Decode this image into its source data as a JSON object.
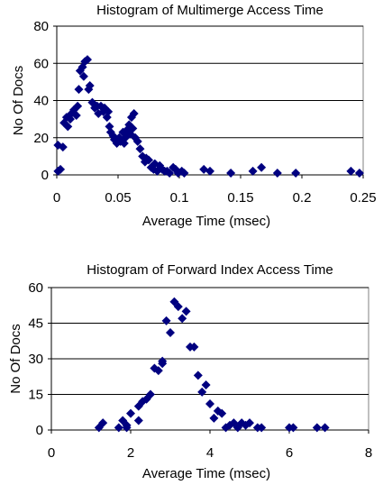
{
  "chart_data": [
    {
      "type": "scatter",
      "title": "Histogram of Multimerge Access Time",
      "xlabel": "Average Time (msec)",
      "ylabel": "No Of Docs",
      "xlim": [
        0,
        0.25
      ],
      "ylim": [
        0,
        80
      ],
      "x_ticks": [
        "0",
        "0.05",
        "0.1",
        "0.15",
        "0.2",
        "0.25"
      ],
      "y_ticks": [
        "0",
        "20",
        "40",
        "60",
        "80"
      ],
      "grid": true,
      "color": "#000080",
      "points": [
        [
          0.001,
          2
        ],
        [
          0.001,
          16
        ],
        [
          0.003,
          3
        ],
        [
          0.005,
          15
        ],
        [
          0.006,
          28
        ],
        [
          0.008,
          31
        ],
        [
          0.009,
          26
        ],
        [
          0.011,
          30
        ],
        [
          0.012,
          33
        ],
        [
          0.014,
          35
        ],
        [
          0.016,
          32
        ],
        [
          0.017,
          37
        ],
        [
          0.018,
          46
        ],
        [
          0.019,
          56
        ],
        [
          0.021,
          58
        ],
        [
          0.022,
          53
        ],
        [
          0.023,
          61
        ],
        [
          0.025,
          62
        ],
        [
          0.026,
          46
        ],
        [
          0.027,
          48
        ],
        [
          0.029,
          39
        ],
        [
          0.031,
          36
        ],
        [
          0.033,
          37
        ],
        [
          0.034,
          33
        ],
        [
          0.036,
          37
        ],
        [
          0.038,
          34
        ],
        [
          0.039,
          36
        ],
        [
          0.041,
          31
        ],
        [
          0.042,
          34
        ],
        [
          0.043,
          26
        ],
        [
          0.044,
          23
        ],
        [
          0.046,
          21
        ],
        [
          0.047,
          19
        ],
        [
          0.049,
          17
        ],
        [
          0.051,
          20
        ],
        [
          0.052,
          18
        ],
        [
          0.054,
          23
        ],
        [
          0.055,
          17
        ],
        [
          0.056,
          20
        ],
        [
          0.057,
          24
        ],
        [
          0.059,
          27
        ],
        [
          0.06,
          22
        ],
        [
          0.061,
          31
        ],
        [
          0.062,
          25
        ],
        [
          0.063,
          33
        ],
        [
          0.064,
          20
        ],
        [
          0.066,
          18
        ],
        [
          0.068,
          14
        ],
        [
          0.07,
          10
        ],
        [
          0.072,
          7
        ],
        [
          0.073,
          9
        ],
        [
          0.075,
          8
        ],
        [
          0.077,
          4
        ],
        [
          0.079,
          3
        ],
        [
          0.08,
          6
        ],
        [
          0.082,
          2
        ],
        [
          0.084,
          5
        ],
        [
          0.086,
          3
        ],
        [
          0.088,
          2
        ],
        [
          0.09,
          2
        ],
        [
          0.092,
          1
        ],
        [
          0.095,
          4
        ],
        [
          0.097,
          3
        ],
        [
          0.099,
          1
        ],
        [
          0.102,
          2
        ],
        [
          0.104,
          1
        ],
        [
          0.12,
          3
        ],
        [
          0.125,
          2
        ],
        [
          0.142,
          1
        ],
        [
          0.16,
          2
        ],
        [
          0.167,
          4
        ],
        [
          0.18,
          1
        ],
        [
          0.195,
          1
        ],
        [
          0.24,
          2
        ],
        [
          0.247,
          1
        ]
      ]
    },
    {
      "type": "scatter",
      "title": "Histogram of Forward Index Access Time",
      "xlabel": "Average Time (msec)",
      "ylabel": "No Of Docs",
      "xlim": [
        0,
        8
      ],
      "ylim": [
        0,
        60
      ],
      "x_ticks": [
        "0",
        "2",
        "4",
        "6",
        "8"
      ],
      "y_ticks": [
        "0",
        "15",
        "30",
        "45",
        "60"
      ],
      "grid": true,
      "color": "#000080",
      "points": [
        [
          1.2,
          1
        ],
        [
          1.3,
          3
        ],
        [
          1.7,
          1
        ],
        [
          1.8,
          4
        ],
        [
          1.9,
          1
        ],
        [
          1.9,
          2
        ],
        [
          2.0,
          7
        ],
        [
          2.2,
          4
        ],
        [
          2.2,
          10
        ],
        [
          2.3,
          12
        ],
        [
          2.4,
          13
        ],
        [
          2.5,
          15
        ],
        [
          2.6,
          26
        ],
        [
          2.7,
          25
        ],
        [
          2.8,
          28
        ],
        [
          2.8,
          29
        ],
        [
          2.9,
          46
        ],
        [
          3.0,
          41
        ],
        [
          3.1,
          54
        ],
        [
          3.2,
          52
        ],
        [
          3.3,
          47
        ],
        [
          3.4,
          50
        ],
        [
          3.5,
          35
        ],
        [
          3.6,
          35
        ],
        [
          3.7,
          23
        ],
        [
          3.8,
          16
        ],
        [
          3.9,
          19
        ],
        [
          4.0,
          11
        ],
        [
          4.1,
          5
        ],
        [
          4.2,
          8
        ],
        [
          4.3,
          7
        ],
        [
          4.4,
          1
        ],
        [
          4.5,
          2
        ],
        [
          4.6,
          3
        ],
        [
          4.7,
          1
        ],
        [
          4.8,
          3
        ],
        [
          4.9,
          2
        ],
        [
          5.0,
          3
        ],
        [
          5.2,
          1
        ],
        [
          5.3,
          1
        ],
        [
          6.0,
          1
        ],
        [
          6.1,
          1
        ],
        [
          6.7,
          1
        ],
        [
          6.9,
          1
        ]
      ]
    }
  ]
}
